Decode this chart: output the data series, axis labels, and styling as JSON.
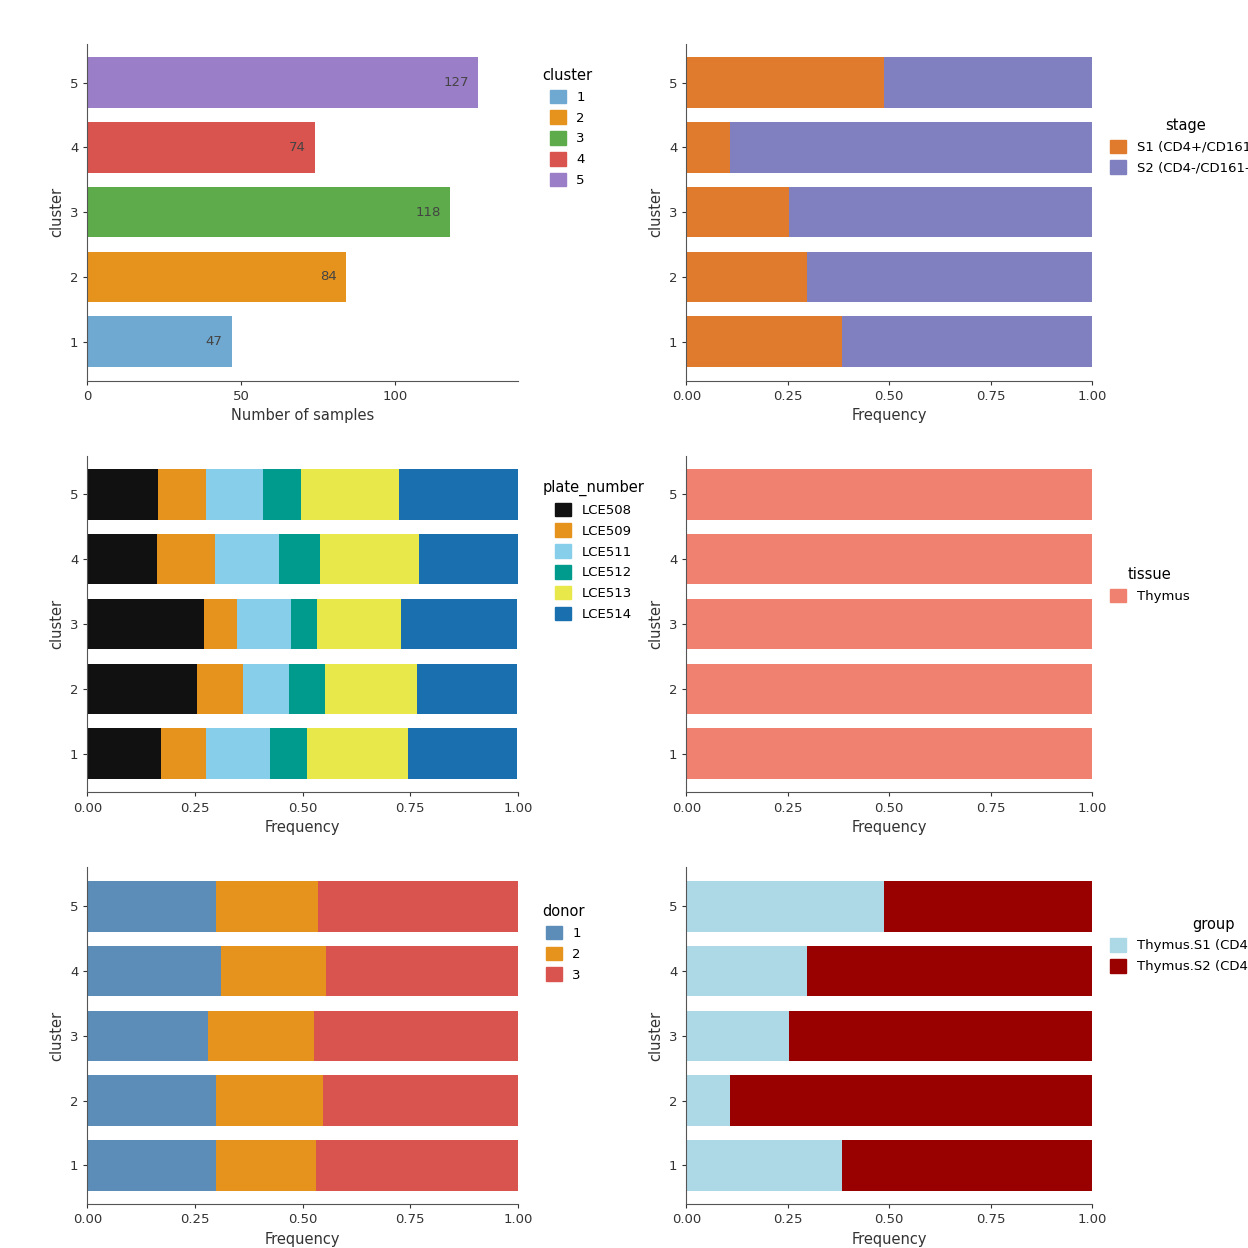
{
  "clusters": [
    1,
    2,
    3,
    4,
    5
  ],
  "counts": [
    47,
    84,
    118,
    74,
    127
  ],
  "cluster_colors": [
    "#6fa8d0",
    "#e6931e",
    "#5dab4a",
    "#d9534f",
    "#9b7ec8"
  ],
  "stage_s1": [
    0.383,
    0.298,
    0.254,
    0.108,
    0.488
  ],
  "stage_s2": [
    0.617,
    0.702,
    0.746,
    0.892,
    0.512
  ],
  "stage_color_s1": "#e07b2e",
  "stage_color_s2": "#8080c0",
  "plate_lce508": [
    0.17,
    0.255,
    0.271,
    0.162,
    0.165
  ],
  "plate_lce509": [
    0.106,
    0.107,
    0.076,
    0.135,
    0.11
  ],
  "plate_lce511": [
    0.149,
    0.107,
    0.127,
    0.149,
    0.134
  ],
  "plate_lce512": [
    0.085,
    0.083,
    0.059,
    0.095,
    0.087
  ],
  "plate_lce513": [
    0.234,
    0.214,
    0.195,
    0.23,
    0.228
  ],
  "plate_lce514": [
    0.255,
    0.232,
    0.271,
    0.23,
    0.276
  ],
  "plate_colors": [
    "#111111",
    "#e6931e",
    "#87ceeb",
    "#009b8d",
    "#e8e84a",
    "#1a6faf"
  ],
  "tissue_thymus": [
    1.0,
    1.0,
    1.0,
    1.0,
    1.0
  ],
  "tissue_color": "#f08070",
  "donor1": [
    0.298,
    0.298,
    0.28,
    0.311,
    0.299
  ],
  "donor2": [
    0.234,
    0.25,
    0.246,
    0.243,
    0.236
  ],
  "donor3": [
    0.468,
    0.452,
    0.474,
    0.446,
    0.465
  ],
  "donor_colors": [
    "#5b8db8",
    "#e6931e",
    "#d9534f"
  ],
  "group_s1": [
    0.383,
    0.108,
    0.254,
    0.298,
    0.488
  ],
  "group_s2": [
    0.617,
    0.892,
    0.746,
    0.702,
    0.512
  ],
  "group_color_s1": "#add8e6",
  "group_color_s2": "#990000",
  "bg_color": "#ffffff",
  "bar_height": 0.78,
  "ylim_low": 0.4,
  "ylim_high": 5.6
}
